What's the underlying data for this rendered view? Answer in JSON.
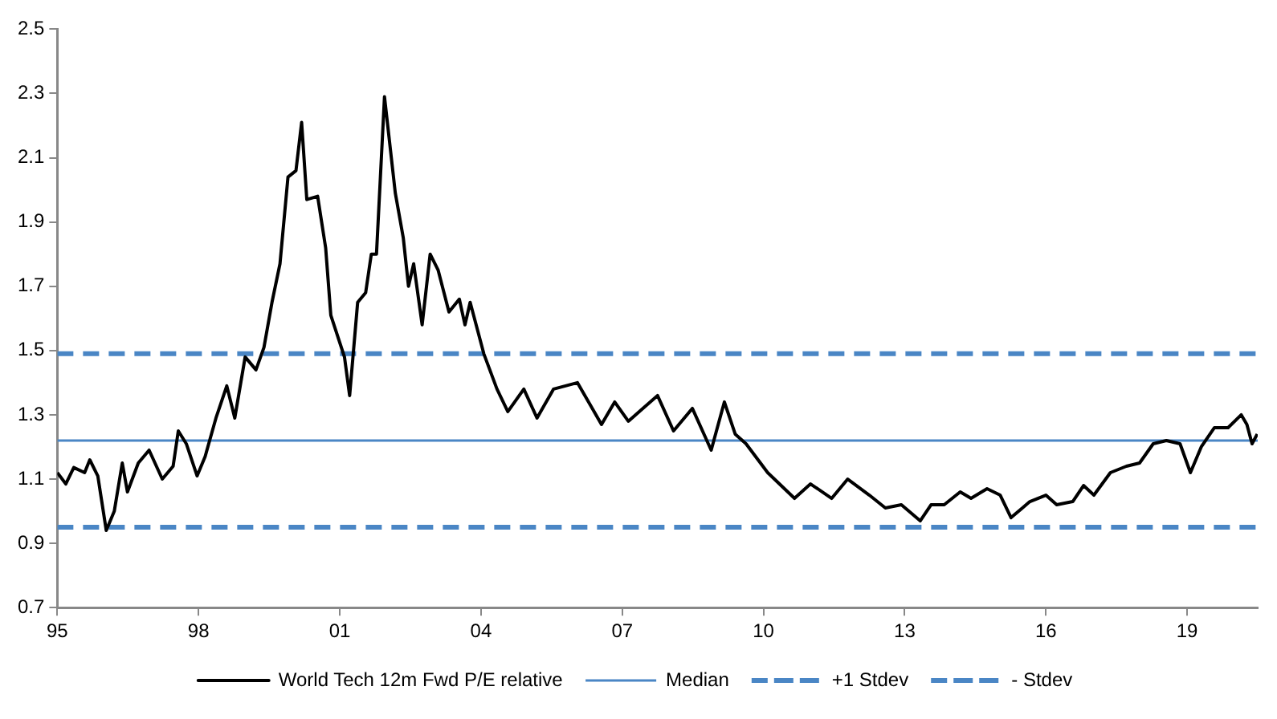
{
  "chart_data": {
    "type": "line",
    "x": [
      1995.0,
      1995.18,
      1995.35,
      1995.58,
      1995.69,
      1995.86,
      1996.04,
      1996.21,
      1996.38,
      1996.49,
      1996.72,
      1996.95,
      1997.23,
      1997.46,
      1997.57,
      1997.74,
      1997.97,
      1998.14,
      1998.37,
      1998.6,
      1998.77,
      1998.99,
      1999.22,
      1999.39,
      1999.56,
      1999.73,
      1999.9,
      2000.07,
      2000.19,
      2000.3,
      2000.53,
      2000.7,
      2000.81,
      2001.1,
      2001.21,
      2001.38,
      2001.55,
      2001.67,
      2001.78,
      2001.95,
      2002.18,
      2002.35,
      2002.46,
      2002.57,
      2002.75,
      2002.92,
      2003.09,
      2003.32,
      2003.54,
      2003.66,
      2003.77,
      2004.06,
      2004.34,
      2004.57,
      2004.91,
      2005.19,
      2005.54,
      2006.05,
      2006.56,
      2006.84,
      2007.13,
      2007.75,
      2008.09,
      2008.49,
      2008.89,
      2009.17,
      2009.4,
      2009.63,
      2010.09,
      2010.66,
      2011.0,
      2011.45,
      2011.79,
      2012.25,
      2012.59,
      2012.93,
      2013.33,
      2013.56,
      2013.84,
      2014.18,
      2014.41,
      2014.75,
      2015.03,
      2015.26,
      2015.66,
      2016.0,
      2016.23,
      2016.57,
      2016.8,
      2017.02,
      2017.37,
      2017.71,
      2017.99,
      2018.28,
      2018.56,
      2018.85,
      2019.07,
      2019.3,
      2019.58,
      2019.87,
      2020.15,
      2020.27,
      2020.38,
      2020.49
    ],
    "series": [
      {
        "name": "World Tech 12m Fwd P/E relative",
        "color": "#000000",
        "values": [
          1.12,
          1.085,
          1.136,
          1.12,
          1.16,
          1.11,
          0.94,
          1.0,
          1.15,
          1.06,
          1.15,
          1.19,
          1.1,
          1.14,
          1.25,
          1.21,
          1.11,
          1.17,
          1.29,
          1.39,
          1.29,
          1.48,
          1.44,
          1.51,
          1.65,
          1.77,
          2.04,
          2.06,
          2.21,
          1.97,
          1.98,
          1.82,
          1.61,
          1.48,
          1.36,
          1.65,
          1.68,
          1.8,
          1.8,
          2.29,
          1.99,
          1.85,
          1.7,
          1.77,
          1.58,
          1.8,
          1.75,
          1.62,
          1.66,
          1.58,
          1.65,
          1.49,
          1.38,
          1.31,
          1.38,
          1.29,
          1.38,
          1.4,
          1.27,
          1.34,
          1.28,
          1.36,
          1.25,
          1.32,
          1.19,
          1.34,
          1.24,
          1.21,
          1.12,
          1.04,
          1.085,
          1.04,
          1.1,
          1.05,
          1.01,
          1.02,
          0.97,
          1.02,
          1.02,
          1.06,
          1.04,
          1.07,
          1.05,
          0.98,
          1.03,
          1.05,
          1.02,
          1.03,
          1.08,
          1.05,
          1.12,
          1.14,
          1.15,
          1.21,
          1.22,
          1.21,
          1.12,
          1.2,
          1.26,
          1.26,
          1.3,
          1.27,
          1.21,
          1.24
        ]
      }
    ],
    "ref_lines": [
      {
        "axis": "y",
        "value": 1.22,
        "label": "Median",
        "color": "#4a86c5",
        "line_style": "solid"
      },
      {
        "axis": "y",
        "value": 1.49,
        "label": "+1 Stdev",
        "color": "#4a86c5",
        "line_style": "dashed"
      },
      {
        "axis": "y",
        "value": 0.95,
        "label": "- Stdev",
        "color": "#4a86c5",
        "line_style": "dashed"
      }
    ],
    "xlim": [
      1995,
      2020.5
    ],
    "xticks": [
      {
        "value": 1995,
        "label": "95"
      },
      {
        "value": 1998,
        "label": "98"
      },
      {
        "value": 2001,
        "label": "01"
      },
      {
        "value": 2004,
        "label": "04"
      },
      {
        "value": 2007,
        "label": "07"
      },
      {
        "value": 2010,
        "label": "10"
      },
      {
        "value": 2013,
        "label": "13"
      },
      {
        "value": 2016,
        "label": "16"
      },
      {
        "value": 2019,
        "label": "19"
      }
    ],
    "ylim": [
      0.7,
      2.5
    ],
    "yticks": [
      0.7,
      0.9,
      1.1,
      1.3,
      1.5,
      1.7,
      1.9,
      2.1,
      2.3,
      2.5
    ],
    "grid": false,
    "legend": "bottom",
    "marker": "none",
    "line_style": "solid"
  }
}
